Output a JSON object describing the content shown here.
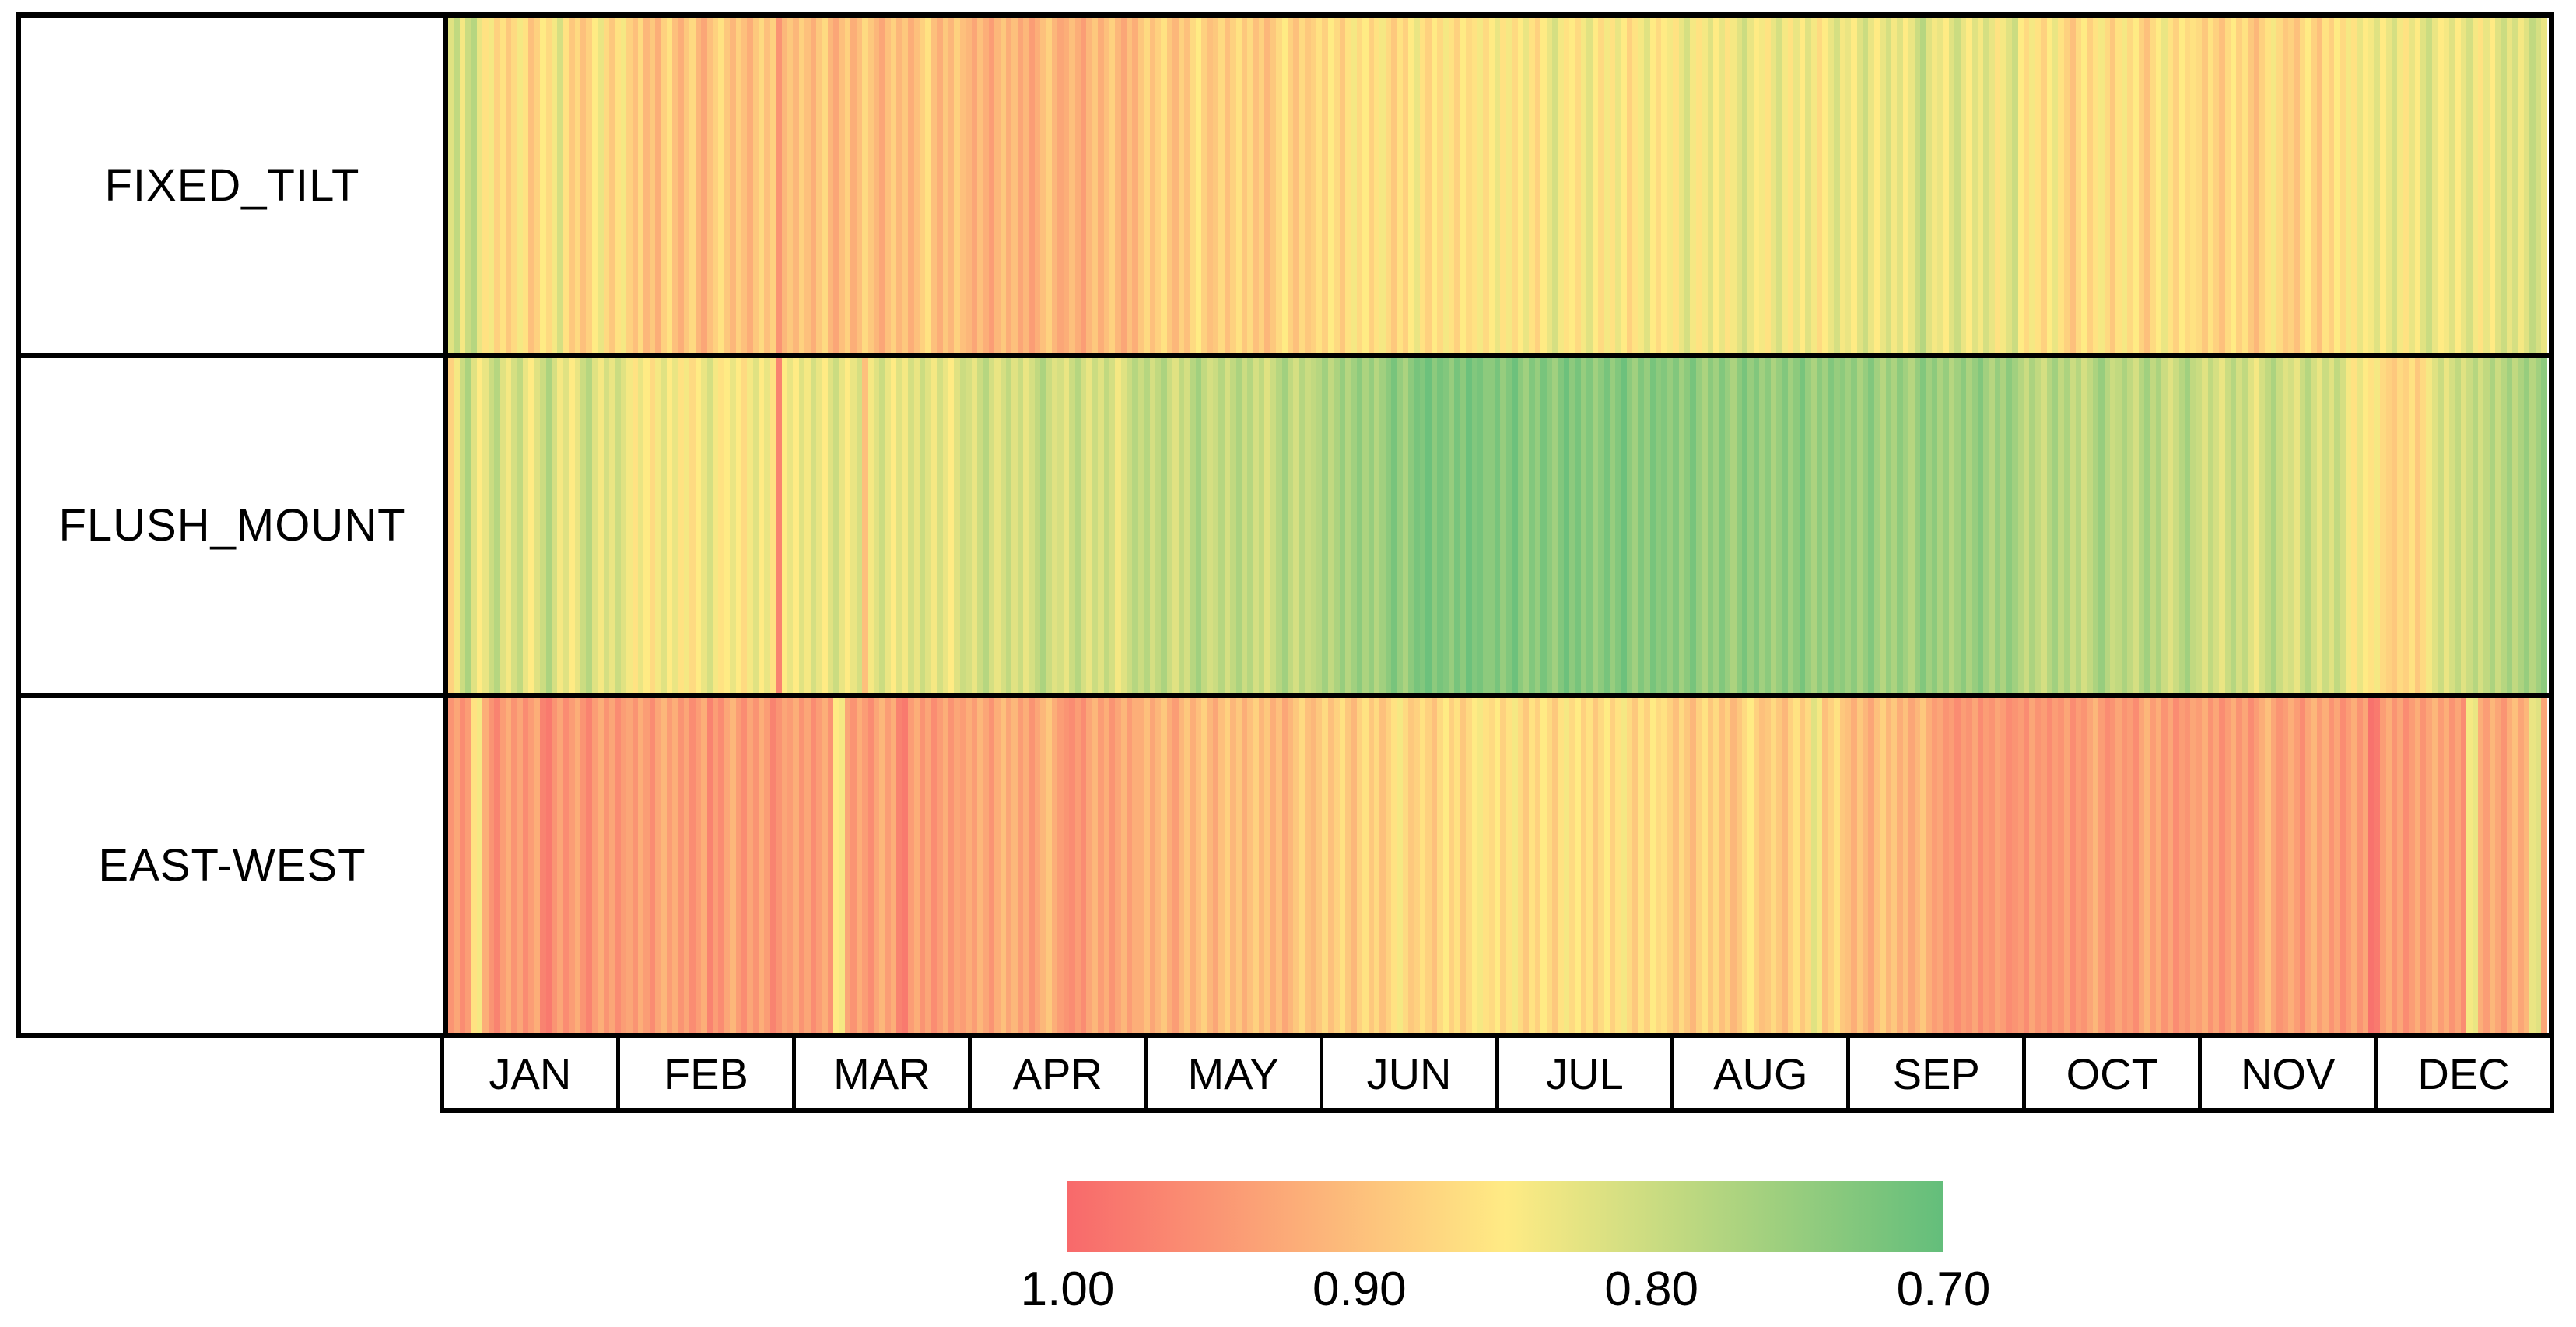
{
  "rows": [
    {
      "label": "FIXED_TILT"
    },
    {
      "label": "FLUSH_MOUNT"
    },
    {
      "label": "EAST-WEST"
    }
  ],
  "months": [
    "JAN",
    "FEB",
    "MAR",
    "APR",
    "MAY",
    "JUN",
    "JUL",
    "AUG",
    "SEP",
    "OCT",
    "NOV",
    "DEC"
  ],
  "legend": {
    "ticks": [
      "1.00",
      "0.90",
      "0.80",
      "0.70"
    ],
    "tick_positions_pct": [
      0,
      33.333,
      66.667,
      100
    ],
    "min_value": 0.7,
    "max_value": 1.0,
    "colors": {
      "high": "#F8696B",
      "mid": "#FFEB84",
      "low": "#63BE7B"
    },
    "note": "reversed scale: red = 1.00 (left), yellow = 0.85 (middle), green = 0.70 (right)"
  },
  "chart_data": {
    "type": "heatmap",
    "title": "",
    "rows": [
      "FIXED_TILT",
      "FLUSH_MOUNT",
      "EAST-WEST"
    ],
    "x_axis": {
      "categories": [
        "JAN",
        "FEB",
        "MAR",
        "APR",
        "MAY",
        "JUN",
        "JUL",
        "AUG",
        "SEP",
        "OCT",
        "NOV",
        "DEC"
      ],
      "days_per_month": [
        31,
        28,
        31,
        30,
        31,
        30,
        31,
        31,
        30,
        31,
        30,
        31
      ],
      "columns": 365
    },
    "value_range": [
      0.7,
      1.0
    ],
    "colormap": {
      "stops": [
        {
          "value": 1.0,
          "color": "#F8696B"
        },
        {
          "value": 0.85,
          "color": "#FFEB84"
        },
        {
          "value": 0.7,
          "color": "#63BE7B"
        }
      ],
      "legend_orientation": "1.00 at left (red) to 0.70 at right (green)"
    },
    "series": [
      {
        "name": "FIXED_TILT",
        "values": [
          0.82,
          0.79,
          0.84,
          0.8,
          0.78,
          0.83,
          0.86,
          0.84,
          0.88,
          0.86,
          0.89,
          0.87,
          0.84,
          0.86,
          0.9,
          0.88,
          0.85,
          0.87,
          0.84,
          0.81,
          0.86,
          0.89,
          0.87,
          0.9,
          0.88,
          0.85,
          0.83,
          0.87,
          0.89,
          0.86,
          0.84,
          0.88,
          0.9,
          0.87,
          0.91,
          0.89,
          0.92,
          0.88,
          0.86,
          0.9,
          0.92,
          0.89,
          0.87,
          0.91,
          0.93,
          0.9,
          0.88,
          0.86,
          0.89,
          0.91,
          0.88,
          0.9,
          0.92,
          0.89,
          0.87,
          0.9,
          0.88,
          0.95,
          0.91,
          0.89,
          0.91,
          0.88,
          0.9,
          0.92,
          0.89,
          0.87,
          0.91,
          0.93,
          0.9,
          0.88,
          0.92,
          0.9,
          0.87,
          0.89,
          0.91,
          0.93,
          0.9,
          0.88,
          0.91,
          0.89,
          0.92,
          0.9,
          0.88,
          0.86,
          0.9,
          0.92,
          0.89,
          0.91,
          0.88,
          0.9,
          0.91,
          0.93,
          0.9,
          0.92,
          0.94,
          0.91,
          0.89,
          0.92,
          0.9,
          0.93,
          0.91,
          0.94,
          0.92,
          0.9,
          0.88,
          0.91,
          0.93,
          0.92,
          0.9,
          0.92,
          0.94,
          0.91,
          0.89,
          0.92,
          0.9,
          0.88,
          0.91,
          0.93,
          0.9,
          0.92,
          0.89,
          0.87,
          0.9,
          0.88,
          0.86,
          0.89,
          0.91,
          0.88,
          0.9,
          0.87,
          0.85,
          0.88,
          0.9,
          0.89,
          0.87,
          0.9,
          0.88,
          0.86,
          0.89,
          0.87,
          0.9,
          0.88,
          0.91,
          0.89,
          0.87,
          0.85,
          0.88,
          0.9,
          0.87,
          0.89,
          0.88,
          0.86,
          0.88,
          0.85,
          0.87,
          0.89,
          0.86,
          0.84,
          0.87,
          0.85,
          0.88,
          0.86,
          0.84,
          0.87,
          0.89,
          0.86,
          0.88,
          0.85,
          0.83,
          0.86,
          0.88,
          0.85,
          0.87,
          0.84,
          0.86,
          0.88,
          0.85,
          0.87,
          0.86,
          0.84,
          0.87,
          0.85,
          0.83,
          0.86,
          0.84,
          0.87,
          0.85,
          0.83,
          0.86,
          0.88,
          0.85,
          0.83,
          0.81,
          0.84,
          0.86,
          0.85,
          0.87,
          0.84,
          0.82,
          0.85,
          0.87,
          0.84,
          0.86,
          0.83,
          0.85,
          0.88,
          0.86,
          0.84,
          0.82,
          0.85,
          0.87,
          0.85,
          0.84,
          0.86,
          0.83,
          0.81,
          0.84,
          0.86,
          0.84,
          0.82,
          0.85,
          0.83,
          0.86,
          0.84,
          0.82,
          0.8,
          0.83,
          0.85,
          0.84,
          0.86,
          0.83,
          0.81,
          0.84,
          0.86,
          0.83,
          0.85,
          0.82,
          0.84,
          0.87,
          0.85,
          0.83,
          0.81,
          0.84,
          0.83,
          0.85,
          0.82,
          0.8,
          0.83,
          0.85,
          0.83,
          0.81,
          0.84,
          0.82,
          0.85,
          0.83,
          0.8,
          0.78,
          0.82,
          0.84,
          0.83,
          0.85,
          0.82,
          0.8,
          0.83,
          0.85,
          0.82,
          0.84,
          0.81,
          0.83,
          0.86,
          0.84,
          0.82,
          0.8,
          0.85,
          0.87,
          0.84,
          0.86,
          0.88,
          0.85,
          0.83,
          0.86,
          0.88,
          0.9,
          0.87,
          0.85,
          0.88,
          0.86,
          0.84,
          0.87,
          0.89,
          0.86,
          0.84,
          0.87,
          0.85,
          0.88,
          0.9,
          0.87,
          0.85,
          0.83,
          0.86,
          0.88,
          0.85,
          0.87,
          0.86,
          0.87,
          0.89,
          0.86,
          0.88,
          0.9,
          0.87,
          0.85,
          0.88,
          0.86,
          0.89,
          0.91,
          0.88,
          0.86,
          0.84,
          0.87,
          0.89,
          0.88,
          0.9,
          0.87,
          0.85,
          0.88,
          0.9,
          0.86,
          0.88,
          0.85,
          0.87,
          0.84,
          0.86,
          0.83,
          0.85,
          0.84,
          0.82,
          0.85,
          0.83,
          0.81,
          0.84,
          0.86,
          0.83,
          0.85,
          0.82,
          0.8,
          0.83,
          0.85,
          0.84,
          0.82,
          0.85,
          0.83,
          0.81,
          0.84,
          0.86,
          0.83,
          0.85,
          0.82,
          0.8,
          0.83,
          0.81,
          0.84,
          0.82,
          0.79,
          0.81,
          0.83
        ]
      },
      {
        "name": "FLUSH_MOUNT",
        "values": [
          0.88,
          0.84,
          0.8,
          0.77,
          0.82,
          0.85,
          0.83,
          0.8,
          0.78,
          0.82,
          0.84,
          0.81,
          0.79,
          0.83,
          0.85,
          0.82,
          0.8,
          0.77,
          0.81,
          0.84,
          0.82,
          0.85,
          0.83,
          0.8,
          0.78,
          0.82,
          0.84,
          0.81,
          0.83,
          0.8,
          0.82,
          0.84,
          0.86,
          0.83,
          0.85,
          0.87,
          0.84,
          0.82,
          0.85,
          0.83,
          0.86,
          0.84,
          0.87,
          0.85,
          0.83,
          0.81,
          0.84,
          0.86,
          0.85,
          0.83,
          0.85,
          0.87,
          0.84,
          0.82,
          0.85,
          0.83,
          0.86,
          0.97,
          0.85,
          0.83,
          0.85,
          0.82,
          0.84,
          0.81,
          0.83,
          0.85,
          0.82,
          0.8,
          0.83,
          0.85,
          0.83,
          0.81,
          0.9,
          0.84,
          0.82,
          0.8,
          0.83,
          0.85,
          0.82,
          0.84,
          0.81,
          0.83,
          0.8,
          0.82,
          0.84,
          0.81,
          0.83,
          0.85,
          0.82,
          0.8,
          0.81,
          0.83,
          0.8,
          0.78,
          0.81,
          0.83,
          0.81,
          0.79,
          0.82,
          0.8,
          0.83,
          0.81,
          0.79,
          0.77,
          0.8,
          0.82,
          0.81,
          0.83,
          0.8,
          0.78,
          0.81,
          0.83,
          0.8,
          0.82,
          0.79,
          0.81,
          0.84,
          0.82,
          0.8,
          0.78,
          0.8,
          0.78,
          0.81,
          0.79,
          0.77,
          0.8,
          0.82,
          0.79,
          0.81,
          0.78,
          0.76,
          0.79,
          0.81,
          0.8,
          0.78,
          0.81,
          0.79,
          0.77,
          0.8,
          0.78,
          0.81,
          0.79,
          0.82,
          0.8,
          0.78,
          0.76,
          0.79,
          0.81,
          0.78,
          0.8,
          0.79,
          0.78,
          0.76,
          0.79,
          0.77,
          0.75,
          0.78,
          0.76,
          0.74,
          0.77,
          0.75,
          0.78,
          0.76,
          0.74,
          0.72,
          0.75,
          0.77,
          0.74,
          0.72,
          0.73,
          0.71,
          0.74,
          0.72,
          0.73,
          0.75,
          0.72,
          0.74,
          0.71,
          0.73,
          0.72,
          0.74,
          0.74,
          0.72,
          0.75,
          0.73,
          0.71,
          0.74,
          0.76,
          0.73,
          0.75,
          0.72,
          0.74,
          0.76,
          0.73,
          0.71,
          0.74,
          0.72,
          0.75,
          0.73,
          0.76,
          0.74,
          0.72,
          0.75,
          0.73,
          0.71,
          0.74,
          0.76,
          0.73,
          0.75,
          0.72,
          0.74,
          0.73,
          0.75,
          0.73,
          0.76,
          0.74,
          0.72,
          0.75,
          0.77,
          0.74,
          0.76,
          0.73,
          0.75,
          0.77,
          0.74,
          0.72,
          0.75,
          0.73,
          0.76,
          0.74,
          0.77,
          0.75,
          0.73,
          0.76,
          0.74,
          0.72,
          0.75,
          0.77,
          0.74,
          0.76,
          0.73,
          0.75,
          0.74,
          0.76,
          0.74,
          0.77,
          0.75,
          0.73,
          0.76,
          0.78,
          0.75,
          0.77,
          0.74,
          0.76,
          0.78,
          0.75,
          0.73,
          0.76,
          0.74,
          0.77,
          0.75,
          0.78,
          0.76,
          0.74,
          0.77,
          0.75,
          0.73,
          0.76,
          0.78,
          0.75,
          0.77,
          0.74,
          0.76,
          0.78,
          0.8,
          0.77,
          0.79,
          0.81,
          0.78,
          0.76,
          0.79,
          0.77,
          0.8,
          0.78,
          0.81,
          0.79,
          0.77,
          0.75,
          0.78,
          0.8,
          0.79,
          0.77,
          0.79,
          0.81,
          0.78,
          0.76,
          0.79,
          0.77,
          0.8,
          0.82,
          0.8,
          0.78,
          0.76,
          0.79,
          0.8,
          0.82,
          0.79,
          0.81,
          0.83,
          0.8,
          0.78,
          0.81,
          0.79,
          0.82,
          0.84,
          0.81,
          0.79,
          0.77,
          0.8,
          0.82,
          0.81,
          0.83,
          0.8,
          0.78,
          0.81,
          0.83,
          0.8,
          0.82,
          0.79,
          0.81,
          0.84,
          0.86,
          0.83,
          0.85,
          0.86,
          0.84,
          0.87,
          0.88,
          0.89,
          0.87,
          0.88,
          0.86,
          0.89,
          0.87,
          0.84,
          0.82,
          0.8,
          0.83,
          0.81,
          0.79,
          0.82,
          0.8,
          0.78,
          0.81,
          0.79,
          0.77,
          0.8,
          0.78,
          0.76,
          0.79,
          0.77,
          0.75,
          0.78,
          0.76,
          0.74
        ]
      },
      {
        "name": "EAST-WEST",
        "values": [
          0.95,
          0.93,
          0.96,
          0.94,
          0.86,
          0.84,
          0.92,
          0.95,
          0.97,
          0.94,
          0.92,
          0.95,
          0.93,
          0.96,
          0.94,
          0.92,
          0.97,
          0.98,
          0.95,
          0.93,
          0.96,
          0.94,
          0.92,
          0.95,
          0.97,
          0.94,
          0.92,
          0.95,
          0.93,
          0.96,
          0.94,
          0.93,
          0.95,
          0.92,
          0.94,
          0.96,
          0.93,
          0.91,
          0.94,
          0.92,
          0.95,
          0.93,
          0.96,
          0.94,
          0.92,
          0.97,
          0.94,
          0.96,
          0.93,
          0.91,
          0.94,
          0.96,
          0.93,
          0.95,
          0.92,
          0.94,
          0.97,
          0.95,
          0.93,
          0.94,
          0.92,
          0.95,
          0.93,
          0.96,
          0.94,
          0.92,
          0.95,
          0.85,
          0.84,
          0.93,
          0.95,
          0.92,
          0.94,
          0.96,
          0.93,
          0.91,
          0.94,
          0.92,
          0.97,
          0.98,
          0.94,
          0.92,
          0.95,
          0.93,
          0.96,
          0.94,
          0.92,
          0.95,
          0.93,
          0.94,
          0.92,
          0.94,
          0.91,
          0.93,
          0.95,
          0.92,
          0.9,
          0.93,
          0.91,
          0.94,
          0.92,
          0.95,
          0.93,
          0.91,
          0.89,
          0.92,
          0.94,
          0.95,
          0.96,
          0.94,
          0.96,
          0.93,
          0.91,
          0.94,
          0.92,
          0.95,
          0.93,
          0.91,
          0.94,
          0.92,
          0.92,
          0.9,
          0.93,
          0.91,
          0.89,
          0.92,
          0.94,
          0.91,
          0.89,
          0.92,
          0.9,
          0.88,
          0.91,
          0.93,
          0.9,
          0.88,
          0.91,
          0.89,
          0.92,
          0.9,
          0.88,
          0.91,
          0.89,
          0.92,
          0.9,
          0.93,
          0.91,
          0.89,
          0.87,
          0.9,
          0.91,
          0.89,
          0.87,
          0.9,
          0.88,
          0.86,
          0.89,
          0.91,
          0.88,
          0.86,
          0.89,
          0.87,
          0.9,
          0.88,
          0.86,
          0.84,
          0.87,
          0.89,
          0.88,
          0.86,
          0.88,
          0.9,
          0.87,
          0.85,
          0.88,
          0.86,
          0.89,
          0.87,
          0.85,
          0.84,
          0.86,
          0.87,
          0.85,
          0.88,
          0.86,
          0.84,
          0.87,
          0.89,
          0.86,
          0.88,
          0.85,
          0.87,
          0.89,
          0.86,
          0.84,
          0.87,
          0.85,
          0.88,
          0.86,
          0.89,
          0.87,
          0.85,
          0.88,
          0.86,
          0.84,
          0.87,
          0.89,
          0.86,
          0.88,
          0.85,
          0.87,
          0.86,
          0.88,
          0.9,
          0.87,
          0.89,
          0.91,
          0.88,
          0.86,
          0.89,
          0.87,
          0.9,
          0.88,
          0.91,
          0.89,
          0.87,
          0.85,
          0.88,
          0.9,
          0.89,
          0.87,
          0.89,
          0.91,
          0.88,
          0.86,
          0.89,
          0.87,
          0.82,
          0.84,
          0.9,
          0.88,
          0.86,
          0.89,
          0.9,
          0.92,
          0.89,
          0.91,
          0.93,
          0.9,
          0.88,
          0.91,
          0.89,
          0.92,
          0.9,
          0.93,
          0.91,
          0.89,
          0.92,
          0.94,
          0.93,
          0.95,
          0.94,
          0.96,
          0.94,
          0.95,
          0.93,
          0.96,
          0.94,
          0.95,
          0.93,
          0.94,
          0.96,
          0.95,
          0.94,
          0.96,
          0.93,
          0.95,
          0.94,
          0.96,
          0.94,
          0.95,
          0.93,
          0.96,
          0.94,
          0.95,
          0.93,
          0.91,
          0.94,
          0.96,
          0.95,
          0.93,
          0.95,
          0.94,
          0.96,
          0.93,
          0.91,
          0.94,
          0.92,
          0.95,
          0.93,
          0.96,
          0.94,
          0.95,
          0.93,
          0.94,
          0.92,
          0.95,
          0.93,
          0.96,
          0.94,
          0.92,
          0.95,
          0.93,
          0.96,
          0.94,
          0.92,
          0.9,
          0.93,
          0.95,
          0.94,
          0.92,
          0.94,
          0.96,
          0.93,
          0.91,
          0.94,
          0.92,
          0.95,
          0.93,
          0.96,
          0.94,
          0.92,
          0.95,
          0.93,
          0.99,
          0.98,
          0.94,
          0.92,
          0.95,
          0.93,
          0.96,
          0.94,
          0.92,
          0.95,
          0.93,
          0.91,
          0.94,
          0.92,
          0.95,
          0.93,
          0.96,
          0.84,
          0.83,
          0.92,
          0.94,
          0.91,
          0.93,
          0.95,
          0.92,
          0.9,
          0.93,
          0.91,
          0.83,
          0.82,
          0.93
        ]
      }
    ]
  }
}
